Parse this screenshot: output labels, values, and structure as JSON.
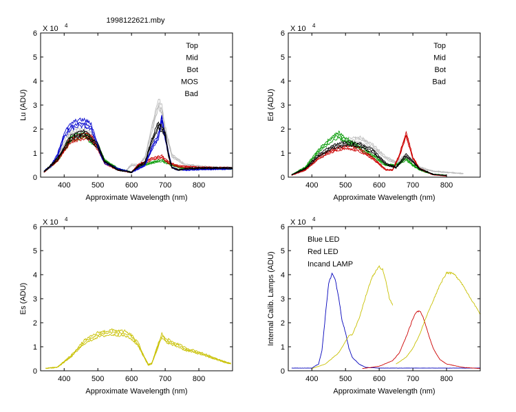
{
  "figure_title": "1998122621.mby",
  "colors": {
    "top": "#000000",
    "mid": "#cc0000",
    "bot": "#009900",
    "mos": "#0000cc",
    "bad": "#bbbbbb",
    "blue_led": "#0000bb",
    "red_led": "#cc0000",
    "lamp": "#c8c000"
  },
  "chart_data": [
    {
      "id": "lu",
      "type": "line",
      "ylabel": "Lu (ADU)",
      "xlabel": "Approximate Wavelength (nm)",
      "multiplier": "X 10",
      "multiplier_exp": "4",
      "xlim": [
        330,
        900
      ],
      "ylim": [
        0,
        6
      ],
      "xticks": [
        "400",
        "500",
        "600",
        "700",
        "800"
      ],
      "yticks": [
        "0",
        "1",
        "2",
        "3",
        "4",
        "5",
        "6"
      ],
      "legend": [
        {
          "label": "Top",
          "color": "#000000"
        },
        {
          "label": "Mid",
          "color": "#cc0000"
        },
        {
          "label": "Bot",
          "color": "#009900"
        },
        {
          "label": "MOS",
          "color": "#0000cc"
        },
        {
          "label": "Bad",
          "color": "#bbbbbb"
        }
      ],
      "series": [
        {
          "name": "Bad",
          "color": "#bbbbbb",
          "x": [
            340,
            360,
            380,
            400,
            420,
            440,
            460,
            480,
            500,
            520,
            540,
            560,
            580,
            600,
            620,
            640,
            660,
            680,
            690,
            700,
            720,
            740,
            760,
            780,
            800,
            850,
            900
          ],
          "y": [
            0.25,
            0.4,
            0.8,
            1.4,
            1.8,
            1.9,
            1.85,
            1.75,
            1.3,
            0.65,
            0.5,
            0.35,
            0.22,
            0.5,
            0.5,
            0.8,
            2.0,
            3.1,
            2.8,
            2.0,
            0.9,
            0.7,
            0.5,
            0.5,
            0.45,
            0.4,
            0.38
          ]
        },
        {
          "name": "Bot",
          "color": "#009900",
          "x": [
            340,
            380,
            420,
            460,
            500,
            520,
            560,
            600,
            620,
            660,
            690,
            720,
            760,
            800,
            900
          ],
          "y": [
            0.22,
            0.7,
            1.6,
            1.75,
            1.3,
            0.7,
            0.35,
            0.2,
            0.45,
            0.6,
            0.7,
            0.5,
            0.35,
            0.35,
            0.35
          ]
        },
        {
          "name": "Mid",
          "color": "#cc0000",
          "x": [
            340,
            380,
            420,
            460,
            480,
            500,
            520,
            560,
            600,
            620,
            660,
            690,
            710,
            740,
            800,
            900
          ],
          "y": [
            0.2,
            0.7,
            1.55,
            1.7,
            1.65,
            1.2,
            0.6,
            0.3,
            0.2,
            0.5,
            0.75,
            0.85,
            0.6,
            0.45,
            0.4,
            0.38
          ]
        },
        {
          "name": "MOS",
          "color": "#0000cc",
          "x": [
            340,
            360,
            380,
            400,
            420,
            440,
            460,
            480,
            500,
            510,
            520,
            560,
            600,
            620,
            640,
            660,
            680,
            690,
            700,
            710,
            720,
            740,
            760,
            800,
            900
          ],
          "y": [
            0.25,
            0.45,
            0.9,
            1.75,
            2.1,
            2.25,
            2.25,
            2.1,
            1.3,
            0.9,
            0.6,
            0.35,
            0.2,
            0.35,
            0.5,
            1.2,
            1.7,
            2.45,
            1.6,
            1.0,
            0.4,
            0.3,
            0.3,
            0.32,
            0.35
          ]
        },
        {
          "name": "Top",
          "color": "#000000",
          "x": [
            340,
            380,
            420,
            460,
            500,
            520,
            560,
            600,
            620,
            640,
            660,
            680,
            690,
            700,
            710,
            720,
            740,
            760,
            800,
            900
          ],
          "y": [
            0.22,
            0.75,
            1.65,
            1.85,
            1.3,
            0.65,
            0.3,
            0.2,
            0.45,
            0.6,
            1.5,
            2.2,
            2.0,
            1.8,
            0.9,
            0.4,
            0.3,
            0.35,
            0.38,
            0.38
          ]
        }
      ]
    },
    {
      "id": "ed",
      "type": "line",
      "ylabel": "Ed  (ADU)",
      "xlabel": "Approximate Wavelength (nm)",
      "multiplier": "X 10",
      "multiplier_exp": "4",
      "xlim": [
        330,
        900
      ],
      "ylim": [
        0,
        6
      ],
      "xticks": [
        "400",
        "500",
        "600",
        "700",
        "800"
      ],
      "yticks": [
        "0",
        "1",
        "2",
        "3",
        "4",
        "5",
        "6"
      ],
      "legend": [
        {
          "label": "Top",
          "color": "#000000"
        },
        {
          "label": "Mid",
          "color": "#cc0000"
        },
        {
          "label": "Bot",
          "color": "#009900"
        },
        {
          "label": "Bad",
          "color": "#bbbbbb"
        }
      ],
      "series": [
        {
          "name": "Bad",
          "color": "#bbbbbb",
          "x": [
            340,
            380,
            420,
            460,
            500,
            540,
            580,
            620,
            650,
            680,
            700,
            720,
            760,
            800,
            850
          ],
          "y": [
            0.1,
            0.3,
            0.8,
            1.2,
            1.5,
            1.6,
            1.3,
            0.8,
            0.6,
            0.9,
            0.7,
            0.4,
            0.25,
            0.2,
            0.15
          ]
        },
        {
          "name": "Bot",
          "color": "#009900",
          "x": [
            340,
            380,
            420,
            460,
            480,
            500,
            540,
            580,
            620,
            650,
            680,
            700,
            720,
            760,
            800
          ],
          "y": [
            0.1,
            0.4,
            1.1,
            1.6,
            1.75,
            1.55,
            1.25,
            0.9,
            0.5,
            0.5,
            0.75,
            0.5,
            0.3,
            0.12,
            0.08
          ]
        },
        {
          "name": "Mid",
          "color": "#cc0000",
          "x": [
            340,
            380,
            420,
            460,
            500,
            540,
            580,
            620,
            640,
            660,
            680,
            700,
            720,
            760,
            800
          ],
          "y": [
            0.08,
            0.3,
            0.8,
            1.1,
            1.25,
            1.15,
            0.8,
            0.3,
            0.3,
            0.9,
            1.8,
            0.8,
            0.35,
            0.1,
            0.05
          ]
        },
        {
          "name": "Top",
          "color": "#000000",
          "x": [
            340,
            380,
            420,
            460,
            500,
            540,
            580,
            620,
            650,
            680,
            700,
            720,
            760,
            800
          ],
          "y": [
            0.1,
            0.35,
            0.9,
            1.25,
            1.4,
            1.35,
            1.1,
            0.55,
            0.4,
            0.9,
            0.65,
            0.35,
            0.12,
            0.07
          ]
        }
      ]
    },
    {
      "id": "es",
      "type": "line",
      "ylabel": "Es  (ADU)",
      "xlabel": "Approximate Wavelength (nm)",
      "multiplier": "X 10",
      "multiplier_exp": "4",
      "xlim": [
        330,
        900
      ],
      "ylim": [
        0,
        6
      ],
      "xticks": [
        "400",
        "500",
        "600",
        "700",
        "800"
      ],
      "yticks": [
        "0",
        "1",
        "2",
        "3",
        "4",
        "5",
        "6"
      ],
      "legend": [],
      "series": [
        {
          "name": "Es",
          "color": "#c8c000",
          "x": [
            345,
            380,
            420,
            460,
            500,
            540,
            580,
            600,
            620,
            640,
            650,
            660,
            680,
            690,
            700,
            720,
            740,
            760,
            800,
            840,
            880,
            895
          ],
          "y": [
            0.1,
            0.15,
            0.6,
            1.2,
            1.5,
            1.6,
            1.55,
            1.4,
            1.1,
            0.5,
            0.25,
            0.3,
            1.1,
            1.45,
            1.3,
            1.15,
            1.05,
            0.9,
            0.75,
            0.55,
            0.35,
            0.3
          ]
        }
      ]
    },
    {
      "id": "cal",
      "type": "line",
      "ylabel": "Internal Calib. Lamps (ADU)",
      "xlabel": "Approximate Wavelength (nm)",
      "multiplier": "X 10",
      "multiplier_exp": "4",
      "xlim": [
        330,
        900
      ],
      "ylim": [
        0,
        6
      ],
      "xticks": [
        "400",
        "500",
        "600",
        "700",
        "800"
      ],
      "yticks": [
        "0",
        "1",
        "2",
        "3",
        "4",
        "5",
        "6"
      ],
      "legend": [
        {
          "label": "Blue LED",
          "color": "#0000bb"
        },
        {
          "label": "Red LED",
          "color": "#cc0000"
        },
        {
          "label": "Incand LAMP",
          "color": "#c8c000"
        }
      ],
      "series": [
        {
          "name": "Blue LED",
          "color": "#0000bb",
          "x": [
            340,
            400,
            420,
            430,
            440,
            450,
            460,
            470,
            480,
            490,
            500,
            510,
            520,
            540,
            560,
            600,
            900
          ],
          "y": [
            0.12,
            0.12,
            0.3,
            0.9,
            2.4,
            3.9,
            4.3,
            4.0,
            3.2,
            2.2,
            1.7,
            1.0,
            0.6,
            0.3,
            0.15,
            0.12,
            0.12
          ]
        },
        {
          "name": "Red LED",
          "color": "#cc0000",
          "x": [
            550,
            600,
            640,
            660,
            680,
            700,
            710,
            720,
            730,
            740,
            760,
            780,
            800,
            850,
            900
          ],
          "y": [
            0.1,
            0.2,
            0.45,
            0.8,
            1.5,
            2.3,
            2.6,
            2.65,
            2.4,
            1.9,
            1.0,
            0.5,
            0.3,
            0.15,
            0.1
          ]
        },
        {
          "name": "Incand LAMP",
          "color": "#c8c000",
          "x": [
            400,
            440,
            480,
            500,
            510,
            520,
            540,
            560,
            580,
            600,
            610,
            620,
            630,
            640
          ],
          "y": [
            0.1,
            0.3,
            0.8,
            1.3,
            1.55,
            1.6,
            2.3,
            3.3,
            4.2,
            4.6,
            4.5,
            4.0,
            3.2,
            2.9
          ]
        },
        {
          "name": "Incand LAMP",
          "color": "#c8c000",
          "x": [
            650,
            680,
            700,
            720,
            740,
            760,
            780,
            800,
            820,
            840,
            860,
            880,
            900
          ],
          "y": [
            0.3,
            0.6,
            1.0,
            1.6,
            2.4,
            3.1,
            3.8,
            4.35,
            4.3,
            4.0,
            3.5,
            3.0,
            2.5
          ]
        }
      ]
    }
  ]
}
